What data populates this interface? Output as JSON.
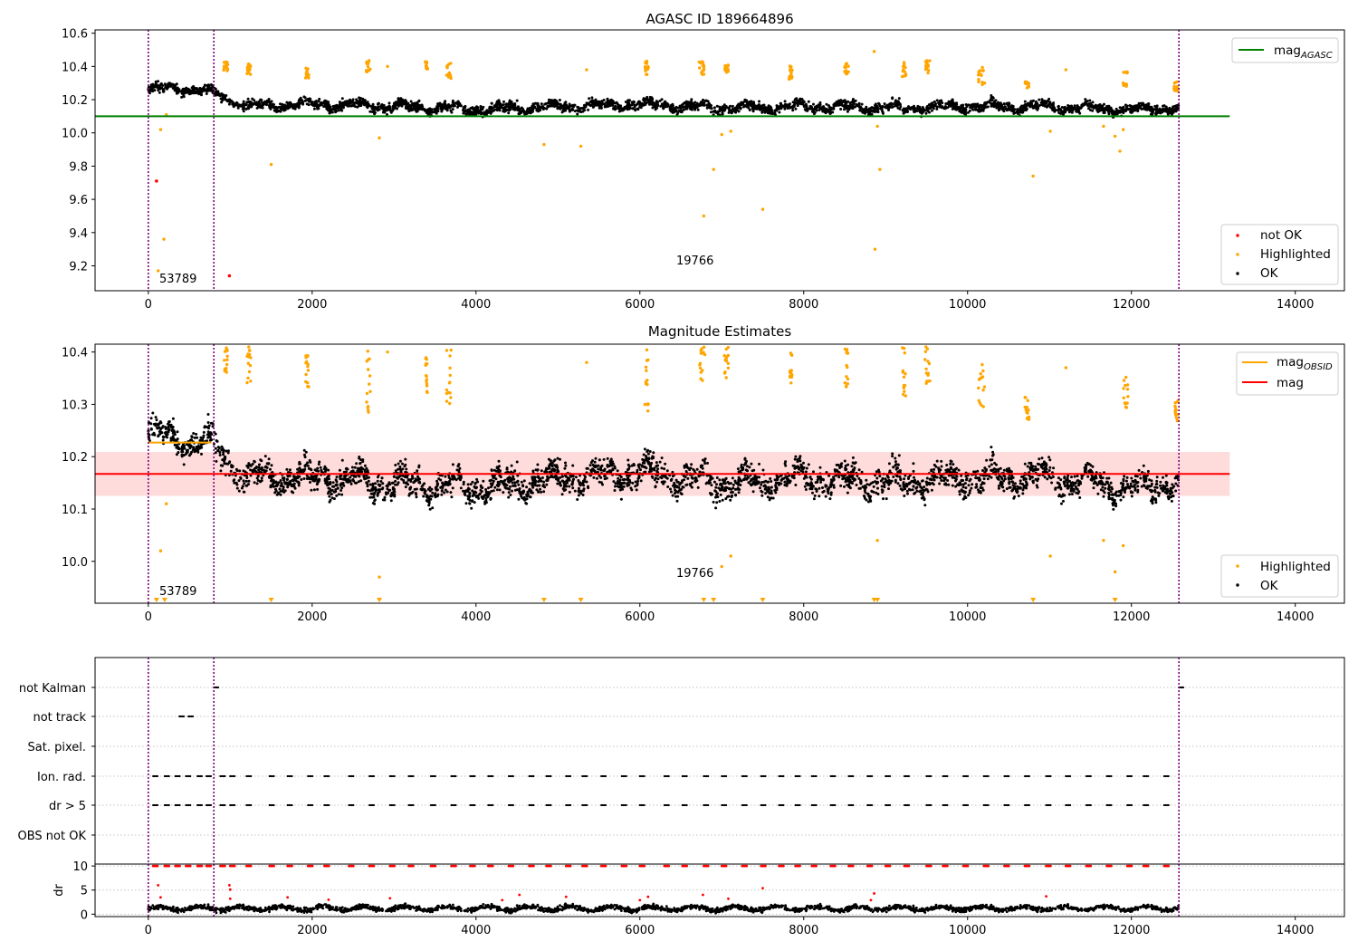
{
  "figure": {
    "colors": {
      "ok": "#000000",
      "highlighted": "#ffa500",
      "not_ok": "#ff0000",
      "mag_agasc_line": "#008000",
      "mag_line": "#ff0000",
      "mag_obsid_line": "#ffa500",
      "obs_boundary": "#800080",
      "band": "#ffc0c0"
    }
  },
  "chart_data": [
    {
      "type": "scatter",
      "title": "AGASC ID 189664896",
      "xlim": [
        -650,
        14600
      ],
      "ylim": [
        9.05,
        10.62
      ],
      "x_ticks": [
        0,
        2000,
        4000,
        6000,
        8000,
        10000,
        12000,
        14000
      ],
      "x_tick_labels": [
        "0",
        "2000",
        "4000",
        "6000",
        "8000",
        "10000",
        "12000",
        "14000"
      ],
      "y_ticks": [
        9.2,
        9.4,
        9.6,
        9.8,
        10.0,
        10.2,
        10.4,
        10.6
      ],
      "y_tick_labels": [
        "9.2",
        "9.4",
        "9.6",
        "9.8",
        "10.0",
        "10.2",
        "10.4",
        "10.6"
      ],
      "observation_boundaries": [
        0,
        800,
        12580
      ],
      "observation_labels": [
        {
          "text": "53789",
          "x": 150,
          "y": 9.12
        },
        {
          "text": "19766",
          "x": 6450,
          "y": 9.2
        }
      ],
      "hlines": [
        {
          "name": "mag",
          "subscript": "AGASC",
          "y": 10.1,
          "x_range": [
            -650,
            13200
          ]
        }
      ],
      "legend_upper": {
        "placement": "top-right",
        "entries": [
          {
            "label": "mag",
            "subscript": "AGASC"
          }
        ]
      },
      "legend_lower": {
        "placement": "bottom-right",
        "entries": [
          "not OK",
          "Highlighted",
          "OK"
        ]
      },
      "series": [
        {
          "name": "not OK",
          "points": [
            [
              100,
              9.71
            ],
            [
              990,
              9.14
            ]
          ]
        },
        {
          "name": "Highlighted",
          "points": [
            [
              120,
              9.17
            ],
            [
              150,
              10.02
            ],
            [
              190,
              9.36
            ],
            [
              220,
              10.11
            ],
            [
              1500,
              9.81
            ],
            [
              2820,
              9.97
            ],
            [
              2920,
              10.4
            ],
            [
              4830,
              9.93
            ],
            [
              5280,
              9.92
            ],
            [
              5350,
              10.38
            ],
            [
              6780,
              9.5
            ],
            [
              6900,
              9.78
            ],
            [
              7000,
              9.99
            ],
            [
              7110,
              10.01
            ],
            [
              7500,
              9.54
            ],
            [
              8860,
              10.49
            ],
            [
              8870,
              9.3
            ],
            [
              8900,
              10.04
            ],
            [
              8930,
              9.78
            ],
            [
              10800,
              9.74
            ],
            [
              11010,
              10.01
            ],
            [
              11200,
              10.38
            ],
            [
              11660,
              10.04
            ],
            [
              11800,
              9.98
            ],
            [
              11860,
              9.89
            ],
            [
              11900,
              10.02
            ]
          ],
          "clusters": [
            {
              "x_from": 920,
              "x_to": 970,
              "y_from": 10.37,
              "y_to": 10.43
            },
            {
              "x_from": 1200,
              "x_to": 1250,
              "y_from": 10.35,
              "y_to": 10.42
            },
            {
              "x_from": 1920,
              "x_to": 1960,
              "y_from": 10.33,
              "y_to": 10.4
            },
            {
              "x_from": 2660,
              "x_to": 2710,
              "y_from": 10.36,
              "y_to": 10.44
            },
            {
              "x_from": 3380,
              "x_to": 3410,
              "y_from": 10.38,
              "y_to": 10.43
            },
            {
              "x_from": 3640,
              "x_to": 3700,
              "y_from": 10.32,
              "y_to": 10.42
            },
            {
              "x_from": 6060,
              "x_to": 6110,
              "y_from": 10.34,
              "y_to": 10.44
            },
            {
              "x_from": 6720,
              "x_to": 6800,
              "y_from": 10.35,
              "y_to": 10.44
            },
            {
              "x_from": 7030,
              "x_to": 7080,
              "y_from": 10.36,
              "y_to": 10.42
            },
            {
              "x_from": 7820,
              "x_to": 7860,
              "y_from": 10.32,
              "y_to": 10.41
            },
            {
              "x_from": 8500,
              "x_to": 8550,
              "y_from": 10.35,
              "y_to": 10.42
            },
            {
              "x_from": 9200,
              "x_to": 9250,
              "y_from": 10.33,
              "y_to": 10.44
            },
            {
              "x_from": 9480,
              "x_to": 9540,
              "y_from": 10.35,
              "y_to": 10.44
            },
            {
              "x_from": 10130,
              "x_to": 10210,
              "y_from": 10.28,
              "y_to": 10.4
            },
            {
              "x_from": 10700,
              "x_to": 10750,
              "y_from": 10.27,
              "y_to": 10.31
            },
            {
              "x_from": 11900,
              "x_to": 11960,
              "y_from": 10.28,
              "y_to": 10.37
            },
            {
              "x_from": 12520,
              "x_to": 12570,
              "y_from": 10.25,
              "y_to": 10.31
            }
          ]
        },
        {
          "name": "OK",
          "mean_curve": [
            [
              0,
              10.26
            ],
            [
              400,
              10.27
            ],
            [
              800,
              10.24
            ],
            [
              1200,
              10.16
            ],
            [
              2000,
              10.17
            ],
            [
              3000,
              10.16
            ],
            [
              4000,
              10.14
            ],
            [
              5000,
              10.16
            ],
            [
              6000,
              10.17
            ],
            [
              7000,
              10.15
            ],
            [
              8000,
              10.16
            ],
            [
              9000,
              10.15
            ],
            [
              10000,
              10.16
            ],
            [
              11000,
              10.16
            ],
            [
              12000,
              10.14
            ],
            [
              12580,
              10.15
            ]
          ],
          "spread": 0.05
        }
      ]
    },
    {
      "type": "scatter",
      "title": "Magnitude Estimates",
      "xlim": [
        -650,
        14600
      ],
      "ylim": [
        9.92,
        10.415
      ],
      "x_ticks": [
        0,
        2000,
        4000,
        6000,
        8000,
        10000,
        12000,
        14000
      ],
      "x_tick_labels": [
        "0",
        "2000",
        "4000",
        "6000",
        "8000",
        "10000",
        "12000",
        "14000"
      ],
      "y_ticks": [
        10.0,
        10.1,
        10.2,
        10.3,
        10.4
      ],
      "y_tick_labels": [
        "10.0",
        "10.1",
        "10.2",
        "10.3",
        "10.4"
      ],
      "observation_boundaries": [
        0,
        800,
        12580
      ],
      "observation_labels": [
        {
          "text": "53789",
          "x": 150,
          "y": 9.93
        },
        {
          "text": "19766",
          "x": 6450,
          "y": 9.97
        }
      ],
      "hlines": [
        {
          "name": "mag",
          "subscript": "OBSID",
          "y": 10.227,
          "x_range": [
            0,
            770
          ]
        },
        {
          "name": "mag",
          "y": 10.167,
          "x_range": [
            -650,
            13200
          ]
        }
      ],
      "band": {
        "y_from": 10.125,
        "y_to": 10.209,
        "x_range": [
          -650,
          13200
        ]
      },
      "legend_upper": {
        "placement": "top-right",
        "entries": [
          {
            "label": "mag",
            "subscript": "OBSID"
          },
          {
            "label": "mag"
          }
        ]
      },
      "legend_lower": {
        "placement": "bottom-right",
        "entries": [
          "Highlighted",
          "OK"
        ]
      },
      "offscale_markers_x": [
        100,
        200,
        1500,
        2820,
        4830,
        5280,
        6780,
        6900,
        7500,
        8860,
        8900,
        10800,
        11800
      ],
      "series": [
        {
          "name": "Highlighted",
          "points": [
            [
              150,
              10.02
            ],
            [
              220,
              10.11
            ],
            [
              2820,
              9.97
            ],
            [
              2920,
              10.4
            ],
            [
              5350,
              10.38
            ],
            [
              7000,
              9.99
            ],
            [
              7110,
              10.01
            ],
            [
              8900,
              10.04
            ],
            [
              11010,
              10.01
            ],
            [
              11200,
              10.37
            ],
            [
              11660,
              10.04
            ],
            [
              11800,
              9.98
            ],
            [
              11900,
              10.03
            ]
          ],
          "clusters": [
            {
              "x_from": 920,
              "x_to": 970,
              "y_from": 10.36,
              "y_to": 10.41
            },
            {
              "x_from": 1200,
              "x_to": 1250,
              "y_from": 10.34,
              "y_to": 10.41
            },
            {
              "x_from": 1920,
              "x_to": 1960,
              "y_from": 10.33,
              "y_to": 10.4
            },
            {
              "x_from": 2660,
              "x_to": 2710,
              "y_from": 10.28,
              "y_to": 10.41
            },
            {
              "x_from": 3380,
              "x_to": 3410,
              "y_from": 10.32,
              "y_to": 10.41
            },
            {
              "x_from": 3640,
              "x_to": 3700,
              "y_from": 10.3,
              "y_to": 10.41
            },
            {
              "x_from": 6060,
              "x_to": 6110,
              "y_from": 10.28,
              "y_to": 10.41
            },
            {
              "x_from": 6720,
              "x_to": 6800,
              "y_from": 10.33,
              "y_to": 10.41
            },
            {
              "x_from": 7030,
              "x_to": 7080,
              "y_from": 10.35,
              "y_to": 10.41
            },
            {
              "x_from": 7820,
              "x_to": 7860,
              "y_from": 10.33,
              "y_to": 10.4
            },
            {
              "x_from": 8500,
              "x_to": 8550,
              "y_from": 10.33,
              "y_to": 10.41
            },
            {
              "x_from": 9200,
              "x_to": 9250,
              "y_from": 10.31,
              "y_to": 10.41
            },
            {
              "x_from": 9480,
              "x_to": 9540,
              "y_from": 10.34,
              "y_to": 10.41
            },
            {
              "x_from": 10130,
              "x_to": 10210,
              "y_from": 10.28,
              "y_to": 10.39
            },
            {
              "x_from": 10700,
              "x_to": 10750,
              "y_from": 10.27,
              "y_to": 10.32
            },
            {
              "x_from": 11900,
              "x_to": 11960,
              "y_from": 10.28,
              "y_to": 10.36
            },
            {
              "x_from": 12520,
              "x_to": 12570,
              "y_from": 10.25,
              "y_to": 10.31
            }
          ]
        },
        {
          "name": "OK",
          "mean_curve": [
            [
              0,
              10.25
            ],
            [
              400,
              10.23
            ],
            [
              800,
              10.22
            ],
            [
              1200,
              10.16
            ],
            [
              2000,
              10.16
            ],
            [
              3000,
              10.15
            ],
            [
              4000,
              10.14
            ],
            [
              5000,
              10.16
            ],
            [
              6000,
              10.17
            ],
            [
              7000,
              10.15
            ],
            [
              8000,
              10.16
            ],
            [
              9000,
              10.15
            ],
            [
              10000,
              10.16
            ],
            [
              11000,
              10.16
            ],
            [
              12000,
              10.14
            ],
            [
              12580,
              10.15
            ]
          ],
          "spread": 0.045
        }
      ]
    },
    {
      "type": "scatter",
      "title": "",
      "xlim": [
        -650,
        14600
      ],
      "observation_boundaries": [
        0,
        800,
        12580
      ],
      "flag_rows": [
        "not Kalman",
        "not track",
        "Sat. pixel.",
        "Ion. rad.",
        "dr > 5",
        "OBS not OK"
      ],
      "flag_points": {
        "not Kalman": [
          800,
          12580
        ],
        "not track": [
          380,
          490
        ],
        "Sat. pixel.": [],
        "Ion. rad.": [
          60,
          200,
          330,
          460,
          600,
          710,
          880,
          1000,
          1200,
          1480,
          1700,
          1950,
          2150,
          2450,
          2700,
          2950,
          3180,
          3450,
          3700,
          3930,
          4150,
          4400,
          4650,
          4860,
          5100,
          5300,
          5530,
          5780,
          6000,
          6300,
          6520,
          6780,
          7000,
          7250,
          7480,
          7700,
          7900,
          8100,
          8330,
          8550,
          8780,
          9000,
          9230,
          9500,
          9700,
          9950,
          10200,
          10450,
          10700,
          10960,
          11200,
          11450,
          11700,
          11950,
          12150,
          12400
        ],
        "dr > 5": [
          60,
          200,
          330,
          460,
          600,
          710,
          880,
          1000,
          1200,
          1480,
          1700,
          1950,
          2150,
          2450,
          2700,
          2950,
          3180,
          3450,
          3700,
          3930,
          4150,
          4400,
          4650,
          4860,
          5100,
          5300,
          5530,
          5780,
          6000,
          6300,
          6520,
          6780,
          7000,
          7250,
          7480,
          7700,
          7900,
          8100,
          8330,
          8550,
          8780,
          9000,
          9230,
          9500,
          9700,
          9950,
          10200,
          10450,
          10700,
          10960,
          11200,
          11450,
          11700,
          11950,
          12150,
          12400
        ],
        "OBS not OK": []
      },
      "dr_panel": {
        "ylabel": "dr",
        "ylim": [
          -0.5,
          10.4
        ],
        "y_ticks": [
          0,
          5,
          10
        ],
        "y_tick_labels": [
          "0",
          "5",
          "10"
        ],
        "ok_mean": 1.2,
        "ok_spread": 0.8,
        "outliers": [
          [
            120,
            6
          ],
          [
            150,
            3.5
          ],
          [
            990,
            6
          ],
          [
            1000,
            5.1
          ],
          [
            1000,
            3.2
          ],
          [
            1700,
            3.5
          ],
          [
            2200,
            3
          ],
          [
            2950,
            3.3
          ],
          [
            4320,
            2.9
          ],
          [
            4530,
            4
          ],
          [
            5100,
            3.6
          ],
          [
            6000,
            2.9
          ],
          [
            6100,
            3.6
          ],
          [
            6770,
            4
          ],
          [
            7080,
            3.2
          ],
          [
            7500,
            5.4
          ],
          [
            8820,
            2.9
          ],
          [
            8860,
            4.3
          ],
          [
            10960,
            3.7
          ]
        ],
        "capped_x": [
          60,
          200,
          330,
          460,
          600,
          710,
          880,
          1000,
          1200,
          1480,
          1700,
          1950,
          2150,
          2450,
          2700,
          2950,
          3180,
          3450,
          3700,
          3930,
          4150,
          4400,
          4650,
          4860,
          5100,
          5300,
          5530,
          5780,
          6000,
          6300,
          6520,
          6780,
          7000,
          7250,
          7480,
          7700,
          7900,
          8100,
          8330,
          8550,
          8780,
          9000,
          9230,
          9500,
          9700,
          9950,
          10200,
          10450,
          10700,
          10960,
          11200,
          11450,
          11700,
          11950,
          12150,
          12400
        ]
      },
      "x_ticks": [
        0,
        2000,
        4000,
        6000,
        8000,
        10000,
        12000,
        14000
      ],
      "x_tick_labels": [
        "0",
        "2000",
        "4000",
        "6000",
        "8000",
        "10000",
        "12000",
        "14000"
      ]
    }
  ]
}
